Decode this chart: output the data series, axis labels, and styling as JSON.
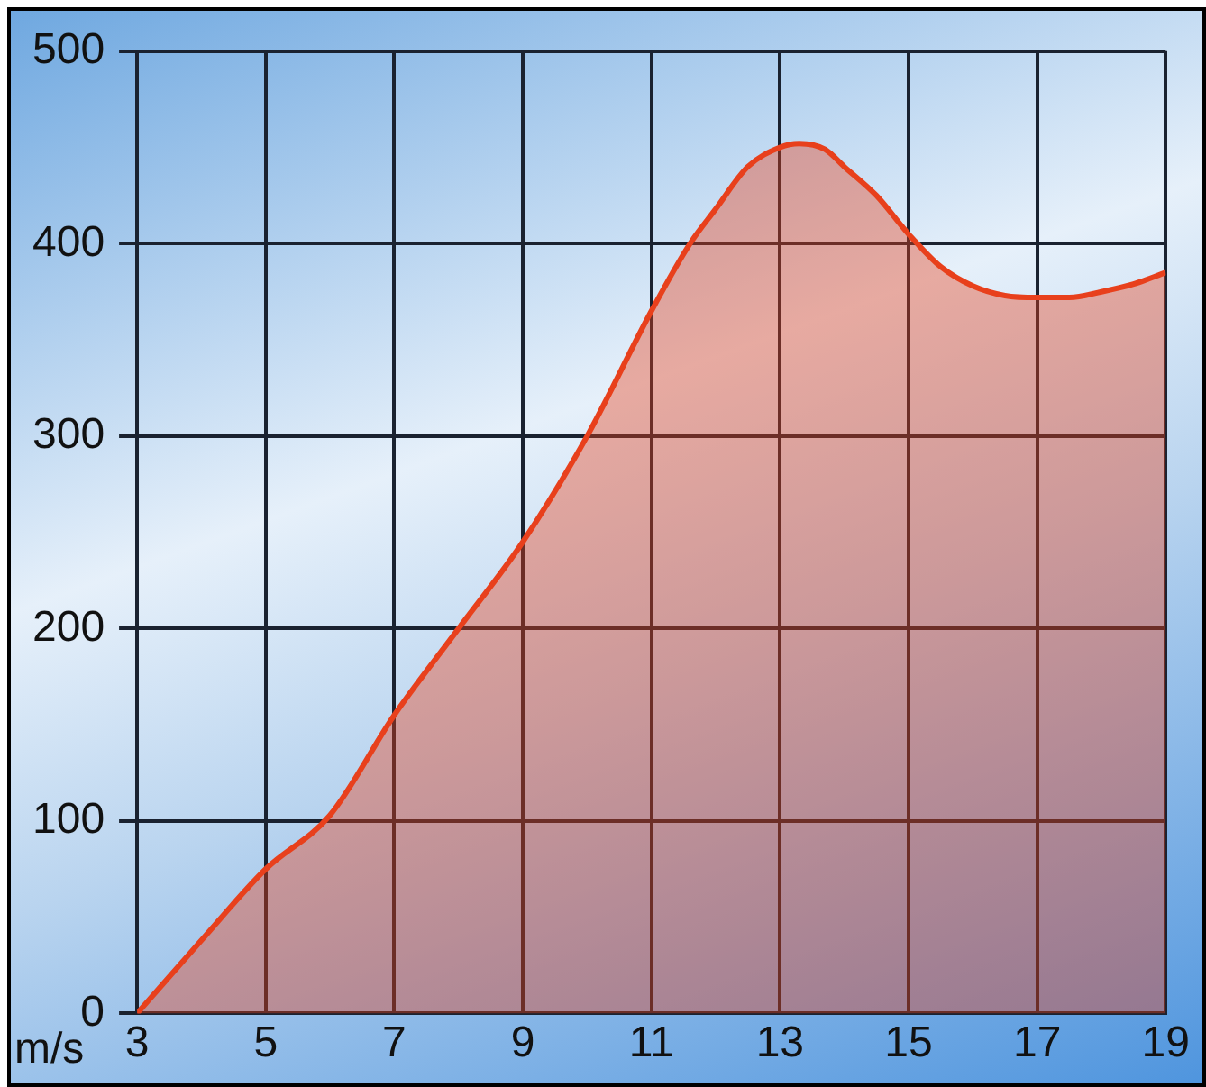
{
  "chart_data": {
    "type": "area",
    "xlabel": "m/s",
    "x": [
      3,
      4,
      5,
      6,
      7,
      8,
      9,
      10,
      11,
      11.6,
      12,
      12.5,
      13,
      13.3,
      13.7,
      14,
      14.5,
      15,
      15.5,
      16,
      16.5,
      17,
      17.5,
      18,
      18.5,
      19
    ],
    "series": [
      {
        "color": "#e8401c",
        "values": [
          0,
          38,
          75,
          103,
          155,
          200,
          245,
          300,
          365,
          400,
          418,
          440,
          450,
          452,
          449,
          440,
          425,
          405,
          388,
          378,
          373,
          372,
          372,
          375,
          379,
          385
        ]
      }
    ],
    "xlim": [
      3,
      19
    ],
    "xticks": [
      3,
      5,
      7,
      9,
      11,
      13,
      15,
      17,
      19
    ],
    "ylim": [
      0,
      500
    ],
    "yticks": [
      0,
      100,
      200,
      300,
      400,
      500
    ],
    "grid": true,
    "legend": false,
    "marker": "none",
    "line_style": "solid"
  }
}
